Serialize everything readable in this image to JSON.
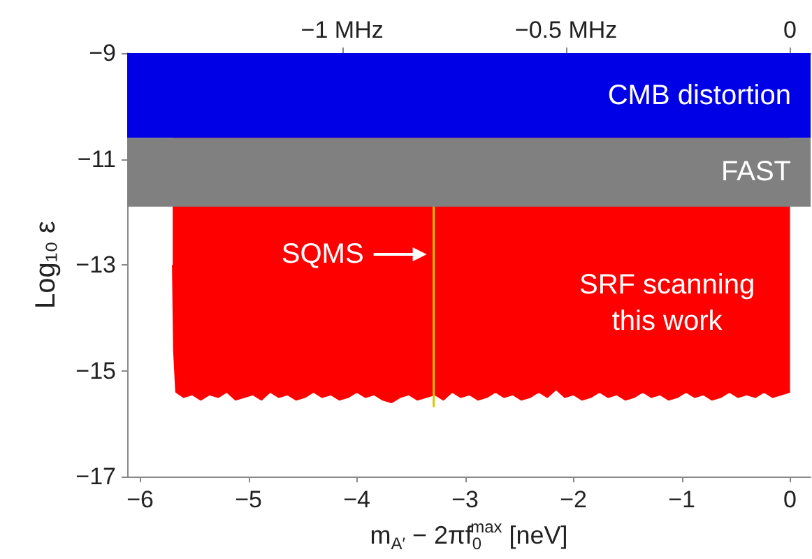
{
  "chart_data": {
    "type": "area",
    "xlabel": "m$_{A′}$ − 2πf$_{0}$$^{max}$ [neV]",
    "ylabel": "Log₁₀ ε",
    "xlim": [
      -6.12,
      0.19
    ],
    "ylim": [
      -17,
      -9
    ],
    "xticks": [
      {
        "value": -6,
        "label": "−6"
      },
      {
        "value": -5,
        "label": "−5"
      },
      {
        "value": -4,
        "label": "−4"
      },
      {
        "value": -3,
        "label": "−3"
      },
      {
        "value": -2,
        "label": "−2"
      },
      {
        "value": -1,
        "label": "−1"
      },
      0
    ],
    "yticks": [
      {
        "value": -9,
        "label": "−9"
      },
      {
        "value": -11,
        "label": "−11"
      },
      {
        "value": -13,
        "label": "−13"
      },
      {
        "value": -15,
        "label": "−15"
      },
      {
        "value": -17,
        "label": "−17"
      }
    ],
    "x2lim": [
      -1.48,
      0.046
    ],
    "x2ticks": [
      {
        "value": -1,
        "label": "−1 MHz"
      },
      {
        "value": -0.5,
        "label": "−0.5 MHz"
      },
      0
    ],
    "grid": false,
    "bands": [
      {
        "axis": "y",
        "from": -10.6,
        "to": -9,
        "label": "CMB distortion",
        "color": "#0000e6"
      },
      {
        "axis": "y",
        "from": -11.9,
        "to": -10.6,
        "label": "FAST",
        "color": "#808080"
      }
    ],
    "series": [
      {
        "color": "#ff0000",
        "x": [
          -5.7,
          -5.69,
          -5.67,
          -5.6,
          -5.52,
          -5.44,
          -5.36,
          -5.28,
          -5.2,
          -5.12,
          -5.04,
          -4.96,
          -4.88,
          -4.8,
          -4.72,
          -4.64,
          -4.56,
          -4.48,
          -4.4,
          -4.32,
          -4.24,
          -4.16,
          -4.08,
          -4.0,
          -3.92,
          -3.84,
          -3.76,
          -3.68,
          -3.6,
          -3.52,
          -3.44,
          -3.36,
          -3.28,
          -3.2,
          -3.12,
          -3.04,
          -2.96,
          -2.88,
          -2.8,
          -2.72,
          -2.64,
          -2.56,
          -2.48,
          -2.4,
          -2.32,
          -2.24,
          -2.16,
          -2.08,
          -2.0,
          -1.92,
          -1.84,
          -1.76,
          -1.68,
          -1.6,
          -1.52,
          -1.44,
          -1.36,
          -1.28,
          -1.2,
          -1.12,
          -1.04,
          -0.96,
          -0.88,
          -0.8,
          -0.72,
          -0.64,
          -0.56,
          -0.48,
          -0.4,
          -0.32,
          -0.24,
          -0.16,
          -0.08,
          0
        ],
        "values": [
          -13.0,
          -14.6,
          -15.4,
          -15.5,
          -15.45,
          -15.55,
          -15.45,
          -15.5,
          -15.4,
          -15.55,
          -15.5,
          -15.45,
          -15.55,
          -15.4,
          -15.5,
          -15.45,
          -15.55,
          -15.5,
          -15.4,
          -15.5,
          -15.45,
          -15.55,
          -15.5,
          -15.4,
          -15.5,
          -15.45,
          -15.55,
          -15.6,
          -15.5,
          -15.45,
          -15.55,
          -15.5,
          -15.45,
          -15.55,
          -15.4,
          -15.5,
          -15.45,
          -15.55,
          -15.5,
          -15.4,
          -15.5,
          -15.45,
          -15.55,
          -15.5,
          -15.4,
          -15.5,
          -15.35,
          -15.5,
          -15.45,
          -15.55,
          -15.5,
          -15.4,
          -15.5,
          -15.45,
          -15.55,
          -15.5,
          -15.4,
          -15.5,
          -15.45,
          -15.55,
          -15.5,
          -15.4,
          -15.5,
          -15.45,
          -15.55,
          -15.5,
          -15.4,
          -15.5,
          -15.45,
          -15.5,
          -15.4,
          -15.5,
          -15.45,
          -15.4
        ]
      },
      {
        "type": "line",
        "color": "#d8c800",
        "x": [
          -3.29,
          -3.29
        ],
        "values": [
          -11.9,
          -15.67
        ]
      }
    ],
    "annotations": [
      {
        "text": "SQMS",
        "x": -3.29,
        "y": -12.8
      },
      "SRF scanning\nthis work"
    ]
  }
}
